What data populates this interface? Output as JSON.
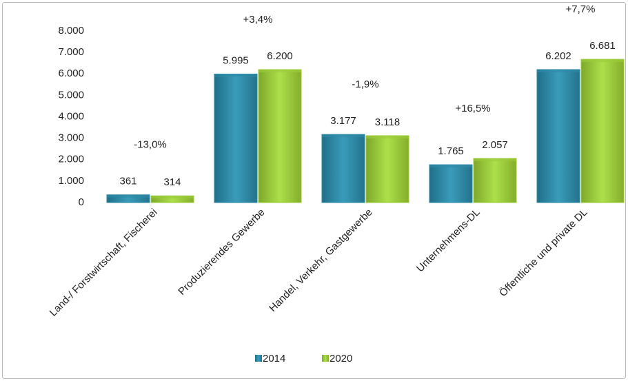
{
  "chart_data": {
    "type": "bar",
    "categories": [
      "Land-/ Forstwirtschaft, Fischerei",
      "Produzierendes Gewerbe",
      "Handel, Verkehr, Gastgewerbe",
      "Unternehmens-DL",
      "Öffentliche und private DL"
    ],
    "series": [
      {
        "name": "2014",
        "color": "#2f8aa6",
        "values": [
          361,
          5995,
          3177,
          1765,
          6202
        ],
        "value_labels": [
          "361",
          "5.995",
          "3.177",
          "1.765",
          "6.202"
        ]
      },
      {
        "name": "2020",
        "color": "#9ccb3b",
        "values": [
          314,
          6200,
          3118,
          2057,
          6681
        ],
        "value_labels": [
          "314",
          "6.200",
          "3.118",
          "2.057",
          "6.681"
        ]
      }
    ],
    "annotations": [
      "-13,0%",
      "+3,4%",
      "-1,9%",
      "+16,5%",
      "+7,7%"
    ],
    "ylim": [
      0,
      8000
    ],
    "yticks": [
      0,
      {
        "value": 1000,
        "label": "1.000"
      },
      {
        "value": 2000,
        "label": "2.000"
      },
      {
        "value": 3000,
        "label": "3.000"
      },
      {
        "value": 4000,
        "label": "4.000"
      },
      {
        "value": 5000,
        "label": "5.000"
      },
      {
        "value": 6000,
        "label": "6.000"
      },
      {
        "value": 7000,
        "label": "7.000"
      },
      {
        "value": 8000,
        "label": "8.000"
      }
    ],
    "grid": false,
    "legend": "bottom"
  }
}
